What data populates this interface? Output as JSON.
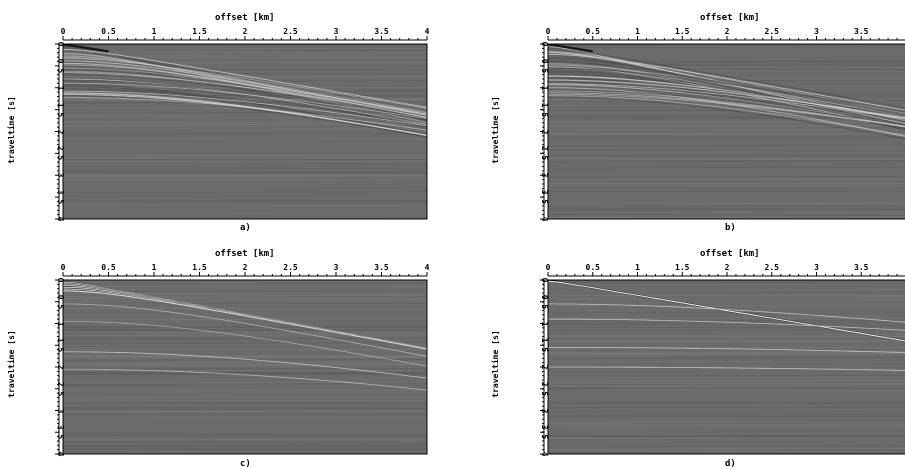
{
  "figure": {
    "panels": [
      {
        "caption": "a)",
        "xlabel": "offset [km]",
        "ylabel": "traveltime [s]",
        "xticks": [
          "0",
          "0.5",
          "1",
          "1.5",
          "2",
          "2.5",
          "3",
          "3.5",
          "4"
        ],
        "yticks": [
          "0",
          "0.5",
          "1",
          "1.5",
          "2",
          "2.5",
          "3",
          "3.5",
          "4"
        ]
      },
      {
        "caption": "b)",
        "xlabel": "offset [km]",
        "ylabel": "traveltime [s]",
        "xticks": [
          "0",
          "0.5",
          "1",
          "1.5",
          "2",
          "2.5",
          "3",
          "3.5"
        ],
        "yticks": [
          "0",
          "0.5",
          "1",
          "1.5",
          "2",
          "2.5",
          "3",
          "3.5",
          "4"
        ]
      },
      {
        "caption": "c)",
        "xlabel": "offset [km]",
        "ylabel": "traveltime [s]",
        "xticks": [
          "0",
          "0.5",
          "1",
          "1.5",
          "2",
          "2.5",
          "3",
          "3.5",
          "4"
        ],
        "yticks": [
          "0",
          "0.5",
          "1",
          "1.5",
          "2",
          "2.5",
          "3",
          "3.5",
          "4"
        ]
      },
      {
        "caption": "d)",
        "xlabel": "offset [km]",
        "ylabel": "traveltime [s]",
        "xticks": [
          "0",
          "0.5",
          "1",
          "1.5",
          "2",
          "2.5",
          "3",
          "3.5"
        ],
        "yticks": [
          "0",
          "0.5",
          "1",
          "1.5",
          "2",
          "2.5",
          "3",
          "3.5",
          "4"
        ]
      }
    ]
  },
  "colors": {
    "background": "#6b6b6b",
    "event_light": "#e6e6e6",
    "event_dark": "#1a1a1a"
  }
}
